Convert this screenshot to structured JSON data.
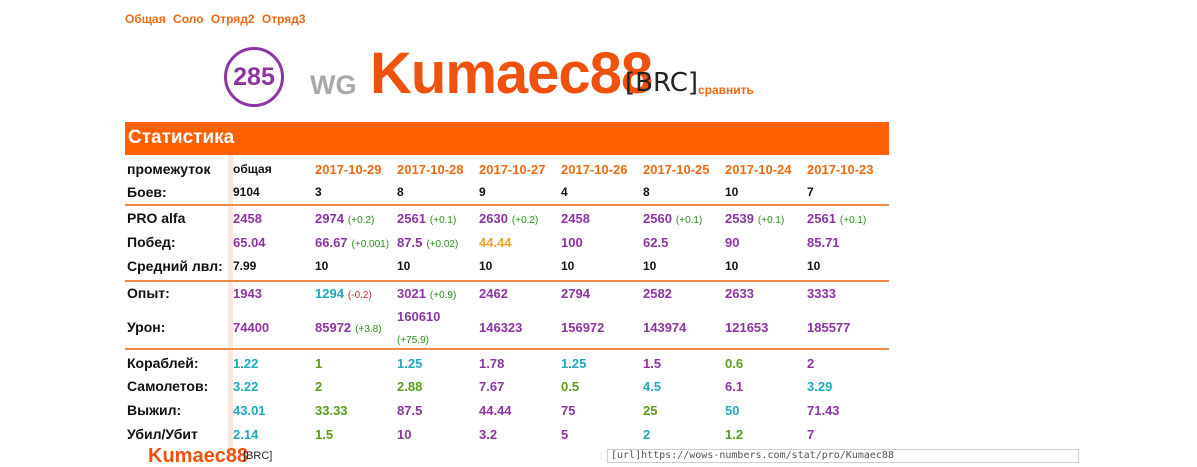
{
  "tabs": [
    "Общая",
    "Соло",
    "Отряд2",
    "Отряд3"
  ],
  "profile": {
    "rating": "285",
    "server": "WG",
    "nickname": "Kumaec88",
    "clan": "[BRC]",
    "compare_label": "сравнить"
  },
  "panel_title": "Статистика",
  "columns": [
    "общая",
    "2017-10-29",
    "2017-10-28",
    "2017-10-27",
    "2017-10-26",
    "2017-10-25",
    "2017-10-24",
    "2017-10-23"
  ],
  "rows": {
    "period": "промежуток",
    "battles": {
      "label": "Боев:",
      "values": [
        "9104",
        "3",
        "8",
        "9",
        "4",
        "8",
        "10",
        "7"
      ]
    },
    "pro": {
      "label": "PRO alfa",
      "values": [
        "2458",
        "2974",
        "2561",
        "2630",
        "2458",
        "2560",
        "2539",
        "2561"
      ],
      "deltas": [
        "",
        "(+0.2)",
        "(+0.1)",
        "(+0.2)",
        "",
        "(+0.1)",
        "(+0.1)",
        "(+0.1)"
      ]
    },
    "wins": {
      "label": "Побед:",
      "values": [
        "65.04",
        "66.67",
        "87.5",
        "44.44",
        "100",
        "62.5",
        "90",
        "85.71"
      ],
      "deltas": [
        "",
        "(+0.001)",
        "(+0.02)",
        "",
        "",
        "",
        "",
        ""
      ]
    },
    "avg_level": {
      "label": "Средний лвл:",
      "values": [
        "7.99",
        "10",
        "10",
        "10",
        "10",
        "10",
        "10",
        "10"
      ]
    },
    "exp": {
      "label": "Опыт:",
      "values": [
        "1943",
        "1294",
        "3021",
        "2462",
        "2794",
        "2582",
        "2633",
        "3333"
      ],
      "deltas": [
        "",
        "(-0.2)",
        "(+0.9)",
        "",
        "",
        "",
        "",
        ""
      ]
    },
    "damage": {
      "label": "Урон:",
      "values": [
        "74400",
        "85972",
        "160610",
        "146323",
        "156972",
        "143974",
        "121653",
        "185577"
      ],
      "deltas": [
        "",
        "(+3.8)",
        "(+75.9)",
        "",
        "",
        "",
        "",
        ""
      ]
    },
    "ships": {
      "label": "Кораблей:",
      "values": [
        "1.22",
        "1",
        "1.25",
        "1.78",
        "1.25",
        "1.5",
        "0.6",
        "2"
      ]
    },
    "planes": {
      "label": "Самолетов:",
      "values": [
        "3.22",
        "2",
        "2.88",
        "7.67",
        "0.5",
        "4.5",
        "6.1",
        "3.29"
      ]
    },
    "survived": {
      "label": "Выжил:",
      "values": [
        "43.01",
        "33.33",
        "87.5",
        "44.44",
        "75",
        "25",
        "50",
        "71.43"
      ]
    },
    "kd": {
      "label": "Убил/Убит",
      "values": [
        "2.14",
        "1.5",
        "10",
        "3.2",
        "5",
        "2",
        "1.2",
        "7"
      ]
    }
  },
  "colors": {
    "accent": "#ff6000",
    "purple": "#8c35a3",
    "teal": "#20a8bd",
    "green": "#5a9a1d",
    "orange": "#f3a32b"
  },
  "footer": {
    "nickname": "Kumaec88",
    "clan": "[BRC]",
    "bbcode": "[url]https://wows-numbers.com/stat/pro/Kumaec88"
  }
}
